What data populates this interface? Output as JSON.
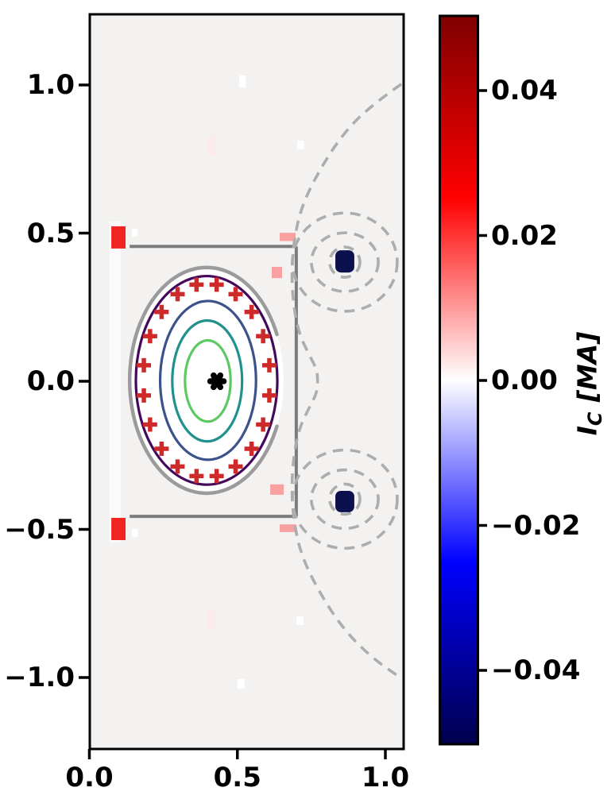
{
  "colorbar": {
    "label": "I_C [MA]",
    "label_symbol": "I",
    "label_sub": "C",
    "label_unit": "[MA]",
    "colormap": "seismic",
    "ticks": [
      {
        "v": 0.04,
        "label": "0.04"
      },
      {
        "v": 0.02,
        "label": "0.02"
      },
      {
        "v": 0.0,
        "label": "0.00"
      },
      {
        "v": -0.02,
        "label": "−0.02"
      },
      {
        "v": -0.04,
        "label": "−0.04"
      }
    ],
    "gradient": [
      {
        "o": 0.0,
        "c": "#00004c"
      },
      {
        "o": 0.25,
        "c": "#0000ff"
      },
      {
        "o": 0.5,
        "c": "#ffffff"
      },
      {
        "o": 0.75,
        "c": "#ff0000"
      },
      {
        "o": 1.0,
        "c": "#7f0000"
      }
    ],
    "vmin": -0.05,
    "vmax": 0.05
  },
  "chart_data": {
    "type": "contour",
    "title": "",
    "xlabel": "",
    "ylabel": "",
    "xlim": [
      0.0,
      1.06
    ],
    "ylim": [
      -1.24,
      1.24
    ],
    "grid": false,
    "equal_aspect": true,
    "axes_background": "#f3f2f1",
    "x_ticks": [
      {
        "v": 0.0,
        "label": "0.0"
      },
      {
        "v": 0.5,
        "label": "0.5"
      },
      {
        "v": 1.0,
        "label": "1.0"
      }
    ],
    "y_ticks": [
      {
        "v": 1.0,
        "label": "1.0"
      },
      {
        "v": 0.5,
        "label": "0.5"
      },
      {
        "v": 0.0,
        "label": "0.0"
      },
      {
        "v": -0.5,
        "label": "−0.5"
      },
      {
        "v": -1.0,
        "label": "−1.0"
      }
    ],
    "wall_color": "#7c7c7c",
    "walls": [
      {
        "x1": 0.136,
        "y1": 0.455,
        "x2": 0.699,
        "y2": 0.455
      },
      {
        "x1": 0.699,
        "y1": 0.455,
        "x2": 0.699,
        "y2": -0.456
      },
      {
        "x1": 0.136,
        "y1": -0.456,
        "x2": 0.699,
        "y2": -0.456
      }
    ],
    "cells": [
      {
        "name": "solenoid-column",
        "x": 0.068,
        "y": 0.54,
        "w": 0.037,
        "h": 1.085,
        "color": "#fbfafa",
        "current_MA": 0.0
      },
      {
        "name": "zero-cell",
        "x": 0.144,
        "y": 0.515,
        "w": 0.019,
        "h": 0.026,
        "color": "#ffffff",
        "current_MA": 0.0
      },
      {
        "name": "zero-cell",
        "x": 0.144,
        "y": -0.499,
        "w": 0.019,
        "h": 0.028,
        "color": "#ffffff",
        "current_MA": 0.0
      },
      {
        "name": "coil-cell-positive",
        "x": 0.074,
        "y": 0.523,
        "w": 0.048,
        "h": 0.075,
        "color": "#f32520",
        "current_MA": 0.045
      },
      {
        "name": "coil-cell-positive",
        "x": 0.074,
        "y": -0.461,
        "w": 0.048,
        "h": 0.075,
        "color": "#f32520",
        "current_MA": 0.045
      },
      {
        "name": "coil-cell-weak",
        "x": 0.643,
        "y": 0.501,
        "w": 0.054,
        "h": 0.028,
        "color": "#f9a0a0",
        "current_MA": 0.02
      },
      {
        "name": "coil-cell-weak",
        "x": 0.616,
        "y": 0.386,
        "w": 0.035,
        "h": 0.038,
        "color": "#f9a0a0",
        "current_MA": 0.02
      },
      {
        "name": "coil-cell-weak",
        "x": 0.611,
        "y": -0.348,
        "w": 0.046,
        "h": 0.035,
        "color": "#f9a0a0",
        "current_MA": 0.02
      },
      {
        "name": "coil-cell-weak",
        "x": 0.643,
        "y": -0.483,
        "w": 0.056,
        "h": 0.026,
        "color": "#f9a0a0",
        "current_MA": 0.02
      },
      {
        "name": "faint-cell",
        "x": 0.401,
        "y": 0.831,
        "w": 0.024,
        "h": 0.07,
        "color": "#fcebeb",
        "current_MA": 0.004
      },
      {
        "name": "faint-cell",
        "x": 0.401,
        "y": -0.772,
        "w": 0.024,
        "h": 0.066,
        "color": "#fcebeb",
        "current_MA": 0.004
      },
      {
        "name": "zero-cell",
        "x": 0.506,
        "y": 1.032,
        "w": 0.022,
        "h": 0.04,
        "color": "#ffffff",
        "current_MA": 0.0
      },
      {
        "name": "zero-cell",
        "x": 0.702,
        "y": 0.812,
        "w": 0.024,
        "h": 0.029,
        "color": "#fefefe",
        "current_MA": 0.0
      },
      {
        "name": "zero-cell",
        "x": 0.5,
        "y": -1.005,
        "w": 0.024,
        "h": 0.033,
        "color": "#ffffff",
        "current_MA": 0.0
      },
      {
        "name": "zero-cell",
        "x": 0.699,
        "y": -0.794,
        "w": 0.024,
        "h": 0.029,
        "color": "#fefefe",
        "current_MA": 0.0
      }
    ],
    "coils": [
      {
        "x": 0.831,
        "y": 0.442,
        "w": 0.064,
        "h": 0.075,
        "color": "#0c104f",
        "current_MA": -0.05
      },
      {
        "x": 0.831,
        "y": -0.37,
        "w": 0.064,
        "h": 0.072,
        "color": "#0c104f",
        "current_MA": -0.05
      }
    ],
    "limiter": {
      "cx": 0.396,
      "cy": 0.003,
      "rx": 0.26,
      "ry": 0.381,
      "gap_start_deg": -24,
      "gap_end_deg": 24,
      "color": "#9b9b9b",
      "interior_fill": "#ffffff"
    },
    "flux_surfaces": [
      {
        "cx": 0.396,
        "cy": 0.003,
        "rx": 0.239,
        "ry": 0.352,
        "color": "#46085c"
      },
      {
        "cx": 0.401,
        "cy": 0.003,
        "rx": 0.162,
        "ry": 0.268,
        "color": "#3b528b"
      },
      {
        "cx": 0.398,
        "cy": 0.001,
        "rx": 0.118,
        "ry": 0.204,
        "color": "#21918c"
      },
      {
        "cx": 0.4,
        "cy": 0.001,
        "rx": 0.077,
        "ry": 0.137,
        "color": "#5ec962"
      }
    ],
    "magnetic_axis": {
      "x": 0.431,
      "y": 0.0,
      "color": "#000000"
    },
    "control_points_color": "#cf2a2a",
    "control_points": [
      [
        0.608,
        0.054
      ],
      [
        0.587,
        0.152
      ],
      [
        0.548,
        0.234
      ],
      [
        0.494,
        0.294
      ],
      [
        0.43,
        0.326
      ],
      [
        0.362,
        0.326
      ],
      [
        0.298,
        0.294
      ],
      [
        0.244,
        0.234
      ],
      [
        0.205,
        0.152
      ],
      [
        0.184,
        0.054
      ],
      [
        0.184,
        -0.048
      ],
      [
        0.205,
        -0.146
      ],
      [
        0.244,
        -0.228
      ],
      [
        0.298,
        -0.288
      ],
      [
        0.362,
        -0.32
      ],
      [
        0.43,
        -0.32
      ],
      [
        0.494,
        -0.288
      ],
      [
        0.548,
        -0.228
      ],
      [
        0.587,
        -0.146
      ],
      [
        0.608,
        -0.048
      ]
    ],
    "external_flux": {
      "color": "#adadad",
      "coil_contours": [
        {
          "cx": 0.863,
          "cy": 0.402,
          "radii": [
            [
              0.051,
              0.051
            ],
            [
              0.113,
              0.099
            ],
            [
              0.177,
              0.166
            ]
          ]
        },
        {
          "cx": 0.863,
          "cy": -0.398,
          "radii": [
            [
              0.051,
              0.051
            ],
            [
              0.113,
              0.099
            ],
            [
              0.177,
              0.166
            ]
          ]
        }
      ],
      "separatrix": [
        [
          1.054,
          1.003
        ],
        [
          0.95,
          0.93
        ],
        [
          0.852,
          0.83
        ],
        [
          0.77,
          0.7
        ],
        [
          0.715,
          0.585
        ],
        [
          0.69,
          0.47
        ],
        [
          0.683,
          0.36
        ],
        [
          0.69,
          0.25
        ],
        [
          0.71,
          0.155
        ],
        [
          0.745,
          0.085
        ],
        [
          0.768,
          0.04
        ],
        [
          0.772,
          0.0
        ],
        [
          0.768,
          -0.04
        ],
        [
          0.745,
          -0.085
        ],
        [
          0.71,
          -0.155
        ],
        [
          0.69,
          -0.25
        ],
        [
          0.683,
          -0.36
        ],
        [
          0.69,
          -0.47
        ],
        [
          0.715,
          -0.585
        ],
        [
          0.77,
          -0.7
        ],
        [
          0.852,
          -0.83
        ],
        [
          0.95,
          -0.93
        ],
        [
          1.054,
          -1.003
        ]
      ]
    }
  }
}
